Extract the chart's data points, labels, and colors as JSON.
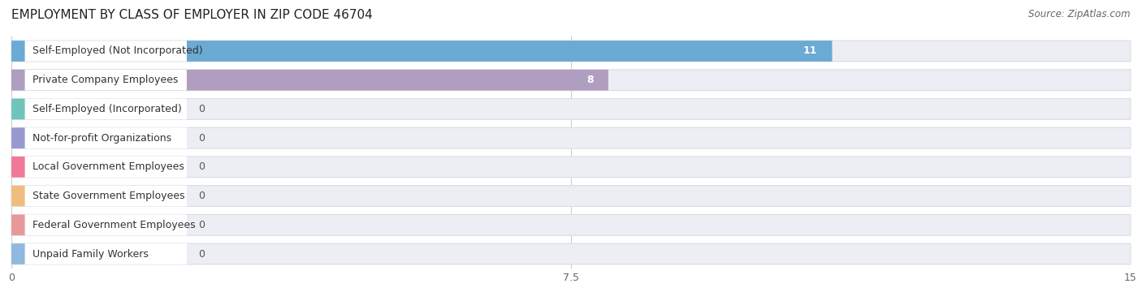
{
  "title": "EMPLOYMENT BY CLASS OF EMPLOYER IN ZIP CODE 46704",
  "source": "Source: ZipAtlas.com",
  "categories": [
    "Self-Employed (Not Incorporated)",
    "Private Company Employees",
    "Self-Employed (Incorporated)",
    "Not-for-profit Organizations",
    "Local Government Employees",
    "State Government Employees",
    "Federal Government Employees",
    "Unpaid Family Workers"
  ],
  "values": [
    11,
    8,
    0,
    0,
    0,
    0,
    0,
    0
  ],
  "bar_colors": [
    "#6aaad4",
    "#b09ec0",
    "#70c4bc",
    "#9898d0",
    "#f07898",
    "#f0bc80",
    "#e89898",
    "#90b8e0"
  ],
  "xlim": [
    0,
    15
  ],
  "xticks": [
    0,
    7.5,
    15
  ],
  "bg_color": "#ffffff",
  "row_color": "#eceef4",
  "row_border_color": "#d8dce8",
  "title_fontsize": 11,
  "source_fontsize": 8.5,
  "label_fontsize": 9,
  "value_fontsize": 9,
  "value_color_inside": "#ffffff",
  "value_color_outside": "#555555"
}
